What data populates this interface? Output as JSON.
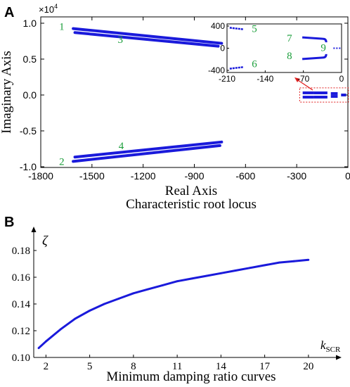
{
  "colors": {
    "curve": "#1a1adb",
    "label": "#1a9e3a",
    "axis": "#000000",
    "arrow": "#e02020",
    "box": "#e02020"
  },
  "chart_data": [
    {
      "panel": "A",
      "type": "scatter",
      "title": "Characteristic root locus",
      "xlabel": "Real Axis",
      "ylabel": "Imaginary  Axis",
      "y_multiplier": "×10",
      "y_multiplier_exp": "4",
      "xlim": [
        -1800,
        0
      ],
      "ylim": [
        -1.0,
        1.0
      ],
      "xticks": [
        "-1800",
        "-1500",
        "-1200",
        "-900",
        "-600",
        "-300",
        "0"
      ],
      "xtick_values": [
        -1800,
        -1500,
        -1200,
        -900,
        -600,
        -300,
        0
      ],
      "yticks": [
        "1.0",
        "0.5",
        "0.0",
        "-0.5",
        "-1.0"
      ],
      "ytick_values": [
        1.0,
        0.5,
        0.0,
        -0.5,
        -1.0
      ],
      "series": [
        {
          "label": "1",
          "x": [
            -1610,
            -740
          ],
          "y": [
            0.925,
            0.72
          ]
        },
        {
          "label": "3",
          "x": [
            -1600,
            -760
          ],
          "y": [
            0.87,
            0.68
          ]
        },
        {
          "label": "2",
          "x": [
            -1610,
            -750
          ],
          "y": [
            -0.925,
            -0.705
          ]
        },
        {
          "label": "4",
          "x": [
            -1600,
            -740
          ],
          "y": [
            -0.865,
            -0.655
          ]
        }
      ],
      "cluster": {
        "x": [
          -270,
          -5
        ],
        "y": [
          -0.04,
          0.04
        ]
      },
      "inset": {
        "xlim": [
          -210,
          0
        ],
        "ylim": [
          -400,
          400
        ],
        "xticks": [
          "-210",
          "-140",
          "-70",
          "0"
        ],
        "xtick_values": [
          -210,
          -140,
          -70,
          0
        ],
        "yticks": [
          "400",
          "0",
          "-400"
        ],
        "ytick_values": [
          400,
          0,
          -400
        ],
        "series": [
          {
            "label": "5",
            "x": [
              -205,
              -180
            ],
            "y": [
              370,
              340
            ]
          },
          {
            "label": "6",
            "x": [
              -205,
              -180
            ],
            "y": [
              -370,
              -340
            ]
          },
          {
            "label": "7",
            "x": [
              -72,
              -32
            ],
            "y": [
              195,
              170
            ]
          },
          {
            "label": "8",
            "x": [
              -72,
              -32
            ],
            "y": [
              -195,
              -170
            ]
          },
          {
            "label": "9",
            "x": [
              -15,
              -2
            ],
            "y": [
              0,
              0
            ]
          }
        ]
      }
    },
    {
      "panel": "B",
      "type": "line",
      "title": "Minimum damping ratio curves",
      "xlabel": "k",
      "xlabel_sub": "SCR",
      "ylabel": "ζ",
      "xlim": [
        1.5,
        21.5
      ],
      "ylim": [
        0.1,
        0.19
      ],
      "xticks": [
        "2",
        "5",
        "8",
        "11",
        "14",
        "17",
        "20"
      ],
      "xtick_values": [
        2,
        5,
        8,
        11,
        14,
        17,
        20
      ],
      "yticks": [
        "0.18",
        "0.16",
        "0.14",
        "0.12",
        "0.10"
      ],
      "ytick_values": [
        0.18,
        0.16,
        0.14,
        0.12,
        0.1
      ],
      "x": [
        1.5,
        2,
        3,
        4,
        5,
        6,
        7,
        8,
        9,
        10,
        11,
        12,
        13,
        14,
        15,
        16,
        17,
        18,
        19,
        20
      ],
      "values": [
        0.107,
        0.112,
        0.121,
        0.129,
        0.135,
        0.14,
        0.144,
        0.148,
        0.151,
        0.154,
        0.157,
        0.159,
        0.161,
        0.163,
        0.165,
        0.167,
        0.169,
        0.171,
        0.172,
        0.173
      ]
    }
  ]
}
